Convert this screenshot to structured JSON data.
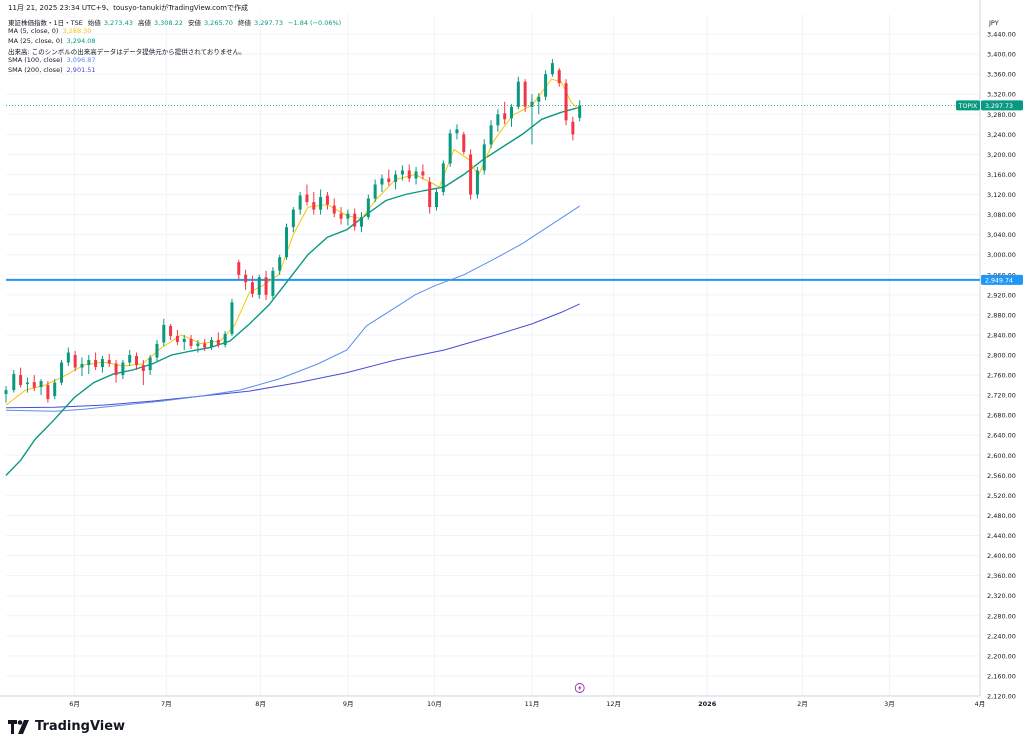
{
  "header": {
    "timestamp": "11月 21, 2025 23:34 UTC+9、tousyo-tanukiがTradingView.comで作成"
  },
  "legend": {
    "instrument": "東証株価指数・1日・TSE",
    "open_label": "始値",
    "open": "3,273.43",
    "high_label": "高値",
    "high": "3,308.22",
    "low_label": "安値",
    "low": "3,265.70",
    "close_label": "終値",
    "close": "3,297.73",
    "change": "−1.84 (−0.06%)",
    "ma5_label": "MA (5, close, 0)",
    "ma5_value": "3,288.30",
    "ma25_label": "MA (25, close, 0)",
    "ma25_value": "3,294.08",
    "volume_note": "出来高: このシンボルの出来高データはデータ提供元から提供されておりません。",
    "sma100_label": "SMA (100, close)",
    "sma100_value": "3,096.87",
    "sma200_label": "SMA (200, close)",
    "sma200_value": "2,901.51"
  },
  "brand": {
    "name": "TradingView"
  },
  "colors": {
    "up": "#089981",
    "down": "#f23645",
    "ma5": "#f7c600",
    "ma25": "#089981",
    "sma100": "#5b8def",
    "sma200": "#4a4ad8",
    "hline": "#2196f3",
    "grid": "#f0f3fa"
  },
  "chart_data": {
    "type": "candlestick",
    "currency": "JPY",
    "y_range": [
      2120,
      3480
    ],
    "y_ticks": [
      "2,120.00",
      "2,160.00",
      "2,200.00",
      "2,240.00",
      "2,280.00",
      "2,320.00",
      "2,360.00",
      "2,400.00",
      "2,440.00",
      "2,480.00",
      "2,520.00",
      "2,560.00",
      "2,600.00",
      "2,640.00",
      "2,680.00",
      "2,720.00",
      "2,760.00",
      "2,800.00",
      "2,840.00",
      "2,880.00",
      "2,920.00",
      "2,960.00",
      "3,000.00",
      "3,040.00",
      "3,080.00",
      "3,120.00",
      "3,160.00",
      "3,200.00",
      "3,240.00",
      "3,280.00",
      "3,320.00",
      "3,360.00",
      "3,400.00",
      "3,440.00"
    ],
    "x_ticks": [
      {
        "label": "6月",
        "t": 0.0704
      },
      {
        "label": "7月",
        "t": 0.1646
      },
      {
        "label": "8月",
        "t": 0.2614
      },
      {
        "label": "9月",
        "t": 0.3513
      },
      {
        "label": "10月",
        "t": 0.4398
      },
      {
        "label": "11月",
        "t": 0.5401
      },
      {
        "label": "12月",
        "t": 0.6239
      },
      {
        "label": "2026",
        "t": 0.7199
      },
      {
        "label": "2月",
        "t": 0.8177
      },
      {
        "label": "3月",
        "t": 0.907
      },
      {
        "label": "4月",
        "t": 1.0
      }
    ],
    "last_price_label": {
      "symbol": "TOPIX",
      "value": "3,297.73",
      "price": 3297.73
    },
    "horizontal_line": {
      "value": "2,949.74",
      "price": 2949.74
    },
    "candles": [
      {
        "t": 0.0,
        "o": 2722,
        "h": 2738,
        "l": 2705,
        "c": 2730
      },
      {
        "t": 0.008,
        "o": 2730,
        "h": 2770,
        "l": 2725,
        "c": 2762
      },
      {
        "t": 0.015,
        "o": 2760,
        "h": 2775,
        "l": 2735,
        "c": 2740
      },
      {
        "t": 0.022,
        "o": 2742,
        "h": 2755,
        "l": 2725,
        "c": 2745
      },
      {
        "t": 0.029,
        "o": 2746,
        "h": 2760,
        "l": 2728,
        "c": 2735
      },
      {
        "t": 0.036,
        "o": 2736,
        "h": 2752,
        "l": 2720,
        "c": 2748
      },
      {
        "t": 0.043,
        "o": 2740,
        "h": 2748,
        "l": 2705,
        "c": 2712
      },
      {
        "t": 0.05,
        "o": 2718,
        "h": 2752,
        "l": 2712,
        "c": 2745
      },
      {
        "t": 0.057,
        "o": 2745,
        "h": 2790,
        "l": 2740,
        "c": 2785
      },
      {
        "t": 0.064,
        "o": 2785,
        "h": 2815,
        "l": 2778,
        "c": 2805
      },
      {
        "t": 0.071,
        "o": 2800,
        "h": 2808,
        "l": 2768,
        "c": 2775
      },
      {
        "t": 0.078,
        "o": 2775,
        "h": 2795,
        "l": 2758,
        "c": 2782
      },
      {
        "t": 0.085,
        "o": 2780,
        "h": 2800,
        "l": 2762,
        "c": 2790
      },
      {
        "t": 0.092,
        "o": 2790,
        "h": 2805,
        "l": 2770,
        "c": 2776
      },
      {
        "t": 0.099,
        "o": 2776,
        "h": 2798,
        "l": 2765,
        "c": 2792
      },
      {
        "t": 0.106,
        "o": 2790,
        "h": 2802,
        "l": 2776,
        "c": 2783
      },
      {
        "t": 0.113,
        "o": 2783,
        "h": 2790,
        "l": 2745,
        "c": 2760
      },
      {
        "t": 0.12,
        "o": 2760,
        "h": 2790,
        "l": 2752,
        "c": 2785
      },
      {
        "t": 0.127,
        "o": 2785,
        "h": 2810,
        "l": 2778,
        "c": 2800
      },
      {
        "t": 0.134,
        "o": 2798,
        "h": 2805,
        "l": 2770,
        "c": 2780
      },
      {
        "t": 0.141,
        "o": 2780,
        "h": 2790,
        "l": 2740,
        "c": 2768
      },
      {
        "t": 0.148,
        "o": 2770,
        "h": 2800,
        "l": 2760,
        "c": 2795
      },
      {
        "t": 0.155,
        "o": 2795,
        "h": 2830,
        "l": 2788,
        "c": 2822
      },
      {
        "t": 0.162,
        "o": 2825,
        "h": 2872,
        "l": 2818,
        "c": 2860
      },
      {
        "t": 0.169,
        "o": 2858,
        "h": 2862,
        "l": 2830,
        "c": 2838
      },
      {
        "t": 0.176,
        "o": 2838,
        "h": 2850,
        "l": 2820,
        "c": 2826
      },
      {
        "t": 0.183,
        "o": 2826,
        "h": 2840,
        "l": 2810,
        "c": 2832
      },
      {
        "t": 0.19,
        "o": 2832,
        "h": 2840,
        "l": 2812,
        "c": 2818
      },
      {
        "t": 0.197,
        "o": 2818,
        "h": 2830,
        "l": 2805,
        "c": 2823
      },
      {
        "t": 0.204,
        "o": 2823,
        "h": 2832,
        "l": 2808,
        "c": 2815
      },
      {
        "t": 0.211,
        "o": 2815,
        "h": 2836,
        "l": 2810,
        "c": 2830
      },
      {
        "t": 0.218,
        "o": 2830,
        "h": 2845,
        "l": 2815,
        "c": 2820
      },
      {
        "t": 0.225,
        "o": 2820,
        "h": 2848,
        "l": 2815,
        "c": 2842
      },
      {
        "t": 0.232,
        "o": 2842,
        "h": 2912,
        "l": 2838,
        "c": 2905
      },
      {
        "t": 0.239,
        "o": 2985,
        "h": 2990,
        "l": 2950,
        "c": 2960
      },
      {
        "t": 0.246,
        "o": 2960,
        "h": 2970,
        "l": 2930,
        "c": 2945
      },
      {
        "t": 0.253,
        "o": 2945,
        "h": 2958,
        "l": 2915,
        "c": 2922
      },
      {
        "t": 0.26,
        "o": 2920,
        "h": 2960,
        "l": 2912,
        "c": 2955
      },
      {
        "t": 0.267,
        "o": 2955,
        "h": 2968,
        "l": 2910,
        "c": 2920
      },
      {
        "t": 0.274,
        "o": 2918,
        "h": 2975,
        "l": 2912,
        "c": 2968
      },
      {
        "t": 0.281,
        "o": 2968,
        "h": 3000,
        "l": 2960,
        "c": 2995
      },
      {
        "t": 0.288,
        "o": 2995,
        "h": 3062,
        "l": 2990,
        "c": 3055
      },
      {
        "t": 0.295,
        "o": 3055,
        "h": 3095,
        "l": 3045,
        "c": 3090
      },
      {
        "t": 0.302,
        "o": 3090,
        "h": 3125,
        "l": 3080,
        "c": 3118
      },
      {
        "t": 0.309,
        "o": 3120,
        "h": 3140,
        "l": 3098,
        "c": 3105
      },
      {
        "t": 0.316,
        "o": 3105,
        "h": 3125,
        "l": 3080,
        "c": 3090
      },
      {
        "t": 0.323,
        "o": 3090,
        "h": 3130,
        "l": 3080,
        "c": 3115
      },
      {
        "t": 0.33,
        "o": 3118,
        "h": 3125,
        "l": 3090,
        "c": 3100
      },
      {
        "t": 0.337,
        "o": 3098,
        "h": 3112,
        "l": 3075,
        "c": 3082
      },
      {
        "t": 0.344,
        "o": 3082,
        "h": 3095,
        "l": 3060,
        "c": 3072
      },
      {
        "t": 0.351,
        "o": 3072,
        "h": 3090,
        "l": 3058,
        "c": 3082
      },
      {
        "t": 0.358,
        "o": 3082,
        "h": 3092,
        "l": 3048,
        "c": 3056
      },
      {
        "t": 0.365,
        "o": 3056,
        "h": 3085,
        "l": 3045,
        "c": 3075
      },
      {
        "t": 0.372,
        "o": 3075,
        "h": 3120,
        "l": 3070,
        "c": 3112
      },
      {
        "t": 0.379,
        "o": 3112,
        "h": 3150,
        "l": 3105,
        "c": 3140
      },
      {
        "t": 0.386,
        "o": 3140,
        "h": 3160,
        "l": 3125,
        "c": 3152
      },
      {
        "t": 0.393,
        "o": 3152,
        "h": 3170,
        "l": 3138,
        "c": 3145
      },
      {
        "t": 0.4,
        "o": 3145,
        "h": 3168,
        "l": 3130,
        "c": 3160
      },
      {
        "t": 0.407,
        "o": 3160,
        "h": 3178,
        "l": 3148,
        "c": 3168
      },
      {
        "t": 0.414,
        "o": 3168,
        "h": 3180,
        "l": 3145,
        "c": 3152
      },
      {
        "t": 0.421,
        "o": 3152,
        "h": 3175,
        "l": 3140,
        "c": 3166
      },
      {
        "t": 0.428,
        "o": 3166,
        "h": 3180,
        "l": 3150,
        "c": 3158
      },
      {
        "t": 0.435,
        "o": 3145,
        "h": 3155,
        "l": 3082,
        "c": 3095
      },
      {
        "t": 0.442,
        "o": 3095,
        "h": 3132,
        "l": 3088,
        "c": 3125
      },
      {
        "t": 0.449,
        "o": 3125,
        "h": 3188,
        "l": 3118,
        "c": 3182
      },
      {
        "t": 0.456,
        "o": 3182,
        "h": 3250,
        "l": 3175,
        "c": 3242
      },
      {
        "t": 0.463,
        "o": 3242,
        "h": 3260,
        "l": 3230,
        "c": 3250
      },
      {
        "t": 0.47,
        "o": 3240,
        "h": 3245,
        "l": 3200,
        "c": 3205
      },
      {
        "t": 0.477,
        "o": 3200,
        "h": 3210,
        "l": 3110,
        "c": 3120
      },
      {
        "t": 0.484,
        "o": 3120,
        "h": 3175,
        "l": 3112,
        "c": 3168
      },
      {
        "t": 0.491,
        "o": 3168,
        "h": 3230,
        "l": 3160,
        "c": 3220
      },
      {
        "t": 0.498,
        "o": 3220,
        "h": 3268,
        "l": 3212,
        "c": 3258
      },
      {
        "t": 0.505,
        "o": 3258,
        "h": 3290,
        "l": 3245,
        "c": 3280
      },
      {
        "t": 0.512,
        "o": 3282,
        "h": 3305,
        "l": 3260,
        "c": 3270
      },
      {
        "t": 0.519,
        "o": 3272,
        "h": 3300,
        "l": 3255,
        "c": 3295
      },
      {
        "t": 0.526,
        "o": 3295,
        "h": 3355,
        "l": 3290,
        "c": 3345
      },
      {
        "t": 0.533,
        "o": 3345,
        "h": 3350,
        "l": 3285,
        "c": 3295
      },
      {
        "t": 0.54,
        "o": 3295,
        "h": 3320,
        "l": 3220,
        "c": 3305
      },
      {
        "t": 0.547,
        "o": 3305,
        "h": 3322,
        "l": 3280,
        "c": 3315
      },
      {
        "t": 0.554,
        "o": 3315,
        "h": 3368,
        "l": 3308,
        "c": 3360
      },
      {
        "t": 0.561,
        "o": 3360,
        "h": 3390,
        "l": 3355,
        "c": 3382
      },
      {
        "t": 0.568,
        "o": 3368,
        "h": 3372,
        "l": 3335,
        "c": 3342
      },
      {
        "t": 0.575,
        "o": 3342,
        "h": 3350,
        "l": 3258,
        "c": 3268
      },
      {
        "t": 0.582,
        "o": 3265,
        "h": 3275,
        "l": 3228,
        "c": 3240
      },
      {
        "t": 0.589,
        "o": 3273,
        "h": 3308,
        "l": 3266,
        "c": 3298
      }
    ],
    "ma5": [
      [
        0.0,
        2700
      ],
      [
        0.02,
        2730
      ],
      [
        0.04,
        2740
      ],
      [
        0.06,
        2758
      ],
      [
        0.08,
        2780
      ],
      [
        0.1,
        2786
      ],
      [
        0.12,
        2778
      ],
      [
        0.14,
        2782
      ],
      [
        0.16,
        2815
      ],
      [
        0.18,
        2840
      ],
      [
        0.2,
        2823
      ],
      [
        0.22,
        2828
      ],
      [
        0.235,
        2860
      ],
      [
        0.25,
        2925
      ],
      [
        0.265,
        2940
      ],
      [
        0.28,
        2960
      ],
      [
        0.295,
        3040
      ],
      [
        0.31,
        3095
      ],
      [
        0.33,
        3100
      ],
      [
        0.35,
        3078
      ],
      [
        0.365,
        3072
      ],
      [
        0.38,
        3110
      ],
      [
        0.4,
        3150
      ],
      [
        0.42,
        3160
      ],
      [
        0.435,
        3145
      ],
      [
        0.445,
        3135
      ],
      [
        0.46,
        3210
      ],
      [
        0.475,
        3190
      ],
      [
        0.485,
        3158
      ],
      [
        0.5,
        3225
      ],
      [
        0.52,
        3278
      ],
      [
        0.54,
        3298
      ],
      [
        0.56,
        3350
      ],
      [
        0.57,
        3345
      ],
      [
        0.58,
        3305
      ],
      [
        0.589,
        3288
      ]
    ],
    "ma25": [
      [
        0.0,
        2560
      ],
      [
        0.015,
        2590
      ],
      [
        0.03,
        2632
      ],
      [
        0.05,
        2672
      ],
      [
        0.07,
        2715
      ],
      [
        0.09,
        2745
      ],
      [
        0.11,
        2762
      ],
      [
        0.13,
        2770
      ],
      [
        0.15,
        2782
      ],
      [
        0.17,
        2800
      ],
      [
        0.19,
        2808
      ],
      [
        0.21,
        2815
      ],
      [
        0.23,
        2828
      ],
      [
        0.25,
        2862
      ],
      [
        0.27,
        2900
      ],
      [
        0.29,
        2950
      ],
      [
        0.31,
        3000
      ],
      [
        0.33,
        3035
      ],
      [
        0.35,
        3050
      ],
      [
        0.37,
        3080
      ],
      [
        0.39,
        3108
      ],
      [
        0.41,
        3120
      ],
      [
        0.43,
        3128
      ],
      [
        0.45,
        3135
      ],
      [
        0.47,
        3160
      ],
      [
        0.49,
        3190
      ],
      [
        0.51,
        3215
      ],
      [
        0.53,
        3240
      ],
      [
        0.55,
        3270
      ],
      [
        0.57,
        3284
      ],
      [
        0.589,
        3294
      ]
    ],
    "sma100": [
      [
        0.0,
        2690
      ],
      [
        0.05,
        2688
      ],
      [
        0.08,
        2692
      ],
      [
        0.12,
        2700
      ],
      [
        0.16,
        2708
      ],
      [
        0.2,
        2718
      ],
      [
        0.24,
        2730
      ],
      [
        0.28,
        2752
      ],
      [
        0.32,
        2782
      ],
      [
        0.35,
        2810
      ],
      [
        0.37,
        2858
      ],
      [
        0.4,
        2895
      ],
      [
        0.42,
        2920
      ],
      [
        0.44,
        2938
      ],
      [
        0.47,
        2960
      ],
      [
        0.5,
        2990
      ],
      [
        0.53,
        3022
      ],
      [
        0.56,
        3060
      ],
      [
        0.589,
        3097
      ]
    ],
    "sma200": [
      [
        0.0,
        2695
      ],
      [
        0.05,
        2696
      ],
      [
        0.1,
        2700
      ],
      [
        0.15,
        2708
      ],
      [
        0.2,
        2718
      ],
      [
        0.25,
        2728
      ],
      [
        0.3,
        2745
      ],
      [
        0.35,
        2765
      ],
      [
        0.4,
        2790
      ],
      [
        0.45,
        2810
      ],
      [
        0.5,
        2838
      ],
      [
        0.54,
        2862
      ],
      [
        0.57,
        2885
      ],
      [
        0.589,
        2902
      ]
    ]
  }
}
